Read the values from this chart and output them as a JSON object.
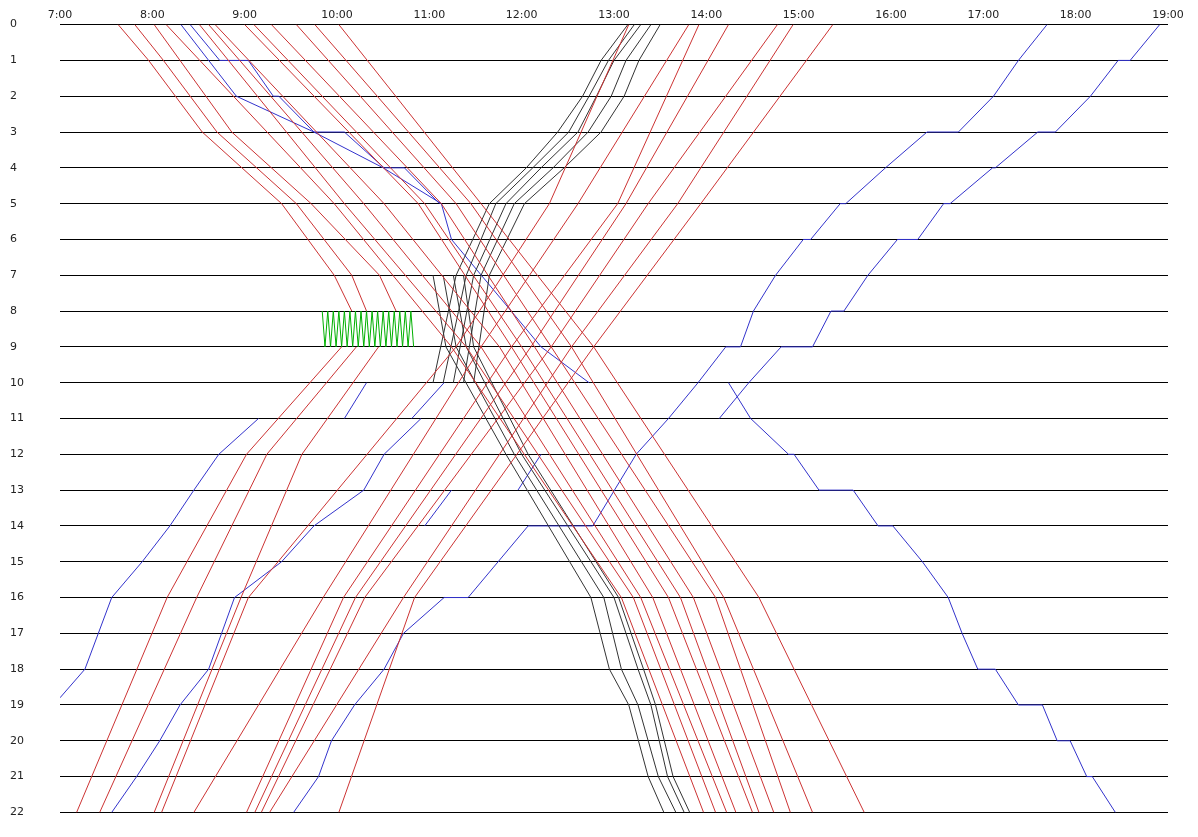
{
  "chart_data": {
    "type": "line",
    "xlim": [
      7,
      19
    ],
    "ylim": [
      22,
      0
    ],
    "xticks": [
      {
        "value": 7,
        "label": "7:00"
      },
      {
        "value": 8,
        "label": "8:00"
      },
      {
        "value": 9,
        "label": "9:00"
      },
      {
        "value": 10,
        "label": "10:00"
      },
      {
        "value": 11,
        "label": "11:00"
      },
      {
        "value": 12,
        "label": "12:00"
      },
      {
        "value": 13,
        "label": "13:00"
      },
      {
        "value": 14,
        "label": "14:00"
      },
      {
        "value": 15,
        "label": "15:00"
      },
      {
        "value": 16,
        "label": "16:00"
      },
      {
        "value": 17,
        "label": "17:00"
      },
      {
        "value": 18,
        "label": "18:00"
      },
      {
        "value": 19,
        "label": "19:00"
      }
    ],
    "yticks": [
      0,
      1,
      2,
      3,
      4,
      5,
      6,
      7,
      8,
      9,
      10,
      11,
      12,
      13,
      14,
      15,
      16,
      17,
      18,
      19,
      20,
      21,
      22
    ],
    "grid": "y",
    "legend": false,
    "marker": "none",
    "line_style": "solid",
    "series": [
      {
        "color": "#cc3333",
        "x": [
          7.63,
          7.96,
          8.54,
          9.4,
          9.97,
          10.16
        ],
        "values": [
          0,
          1,
          3,
          5,
          7,
          8
        ]
      },
      {
        "color": "#cc3333",
        "x": [
          7.81,
          8.12,
          8.7,
          9.56,
          10.16,
          10.32
        ],
        "values": [
          0,
          1,
          3,
          5,
          7,
          8
        ]
      },
      {
        "color": "#cc3333",
        "x": [
          8.02,
          8.3,
          8.86,
          9.72,
          10.46,
          10.64
        ],
        "values": [
          0,
          1,
          3,
          5,
          7,
          8
        ]
      },
      {
        "color": "#cc3333",
        "x": [
          8.15,
          9.97,
          11.24,
          13.08,
          13.97
        ],
        "values": [
          0,
          5,
          9,
          16,
          22
        ]
      },
      {
        "color": "#cc3333",
        "x": [
          8.51,
          10.08,
          11.4,
          13.21,
          14.1
        ],
        "values": [
          0,
          5,
          9,
          16,
          22
        ]
      },
      {
        "color": "#cc3333",
        "x": [
          8.61,
          10.29,
          11.56,
          13.29,
          14.22
        ],
        "values": [
          0,
          5,
          9,
          16,
          22
        ]
      },
      {
        "color": "#cc3333",
        "x": [
          8.68,
          10.51,
          11.76,
          13.42,
          14.32
        ],
        "values": [
          0,
          5,
          9,
          16,
          22
        ]
      },
      {
        "color": "#cc3333",
        "x": [
          9.0,
          10.88,
          11.89,
          13.59,
          14.5
        ],
        "values": [
          0,
          5,
          9,
          16,
          22
        ]
      },
      {
        "color": "#cc3333",
        "x": [
          9.1,
          10.95,
          12.0,
          13.72,
          14.57
        ],
        "values": [
          0,
          5,
          9,
          16,
          22
        ]
      },
      {
        "color": "#cc3333",
        "x": [
          9.29,
          11.13,
          12.14,
          13.86,
          14.73
        ],
        "values": [
          0,
          5,
          9,
          16,
          22
        ]
      },
      {
        "color": "#cc3333",
        "x": [
          9.56,
          11.29,
          12.32,
          14.1,
          14.91
        ],
        "values": [
          0,
          5,
          9,
          16,
          22
        ]
      },
      {
        "color": "#cc3333",
        "x": [
          9.76,
          11.45,
          12.54,
          14.19,
          15.15
        ],
        "values": [
          0,
          5,
          9,
          16,
          22
        ]
      },
      {
        "color": "#cc3333",
        "x": [
          10.02,
          11.56,
          12.78,
          14.57,
          15.71
        ],
        "values": [
          0,
          5,
          9,
          16,
          22
        ]
      },
      {
        "color": "#cc3333",
        "x": [
          7.18,
          8.16,
          9.02,
          10.05
        ],
        "values": [
          22,
          16,
          12,
          9
        ]
      },
      {
        "color": "#cc3333",
        "x": [
          7.43,
          8.48,
          9.24,
          10.21
        ],
        "values": [
          22,
          16,
          12,
          9
        ]
      },
      {
        "color": "#cc3333",
        "x": [
          8.02,
          8.96,
          9.62,
          10.45
        ],
        "values": [
          22,
          16,
          12,
          9
        ]
      },
      {
        "color": "#cc3333",
        "x": [
          8.1,
          9.04,
          11.29,
          12.3,
          13.16
        ],
        "values": [
          22,
          16,
          9,
          5,
          0
        ]
      },
      {
        "color": "#cc3333",
        "x": [
          8.45,
          9.85,
          11.56,
          12.61,
          13.81
        ],
        "values": [
          22,
          16,
          9,
          5,
          0
        ]
      },
      {
        "color": "#cc3333",
        "x": [
          9.02,
          10.07,
          11.89,
          13.04,
          13.92
        ],
        "values": [
          22,
          16,
          9,
          5,
          0
        ]
      },
      {
        "color": "#cc3333",
        "x": [
          9.11,
          10.2,
          12.1,
          13.13,
          14.24
        ],
        "values": [
          22,
          16,
          9,
          5,
          0
        ]
      },
      {
        "color": "#cc3333",
        "x": [
          9.18,
          10.3,
          12.32,
          13.37,
          14.77
        ],
        "values": [
          22,
          16,
          9,
          5,
          0
        ]
      },
      {
        "color": "#cc3333",
        "x": [
          9.27,
          10.72,
          12.54,
          13.69,
          14.94
        ],
        "values": [
          22,
          16,
          9,
          5,
          0
        ]
      },
      {
        "color": "#cc3333",
        "x": [
          10.02,
          10.84,
          12.78,
          13.94,
          15.37
        ],
        "values": [
          22,
          16,
          9,
          5,
          0
        ]
      },
      {
        "color": "#333333",
        "x": [
          11.04,
          11.29,
          11.65,
          12.05,
          12.39,
          12.66,
          12.86,
          13.15
        ],
        "values": [
          10,
          7,
          5,
          4,
          3,
          2,
          1,
          0
        ]
      },
      {
        "color": "#333333",
        "x": [
          11.15,
          11.4,
          11.72,
          12.12,
          12.51,
          12.73,
          12.94,
          13.22
        ],
        "values": [
          10,
          7,
          5,
          4,
          3,
          2,
          1,
          0
        ]
      },
      {
        "color": "#333333",
        "x": [
          11.26,
          11.48,
          11.83,
          12.21,
          12.61,
          12.81,
          13.0,
          13.29
        ],
        "values": [
          10,
          7,
          5,
          4,
          3,
          2,
          1,
          0
        ]
      },
      {
        "color": "#333333",
        "x": [
          11.37,
          11.56,
          11.92,
          12.34,
          12.72,
          12.97,
          13.13,
          13.4
        ],
        "values": [
          10,
          7,
          5,
          4,
          3,
          2,
          1,
          0
        ]
      },
      {
        "color": "#333333",
        "x": [
          11.48,
          11.65,
          12.03,
          12.46,
          12.86,
          13.11,
          13.27,
          13.5
        ],
        "values": [
          10,
          7,
          5,
          4,
          3,
          2,
          1,
          0
        ]
      },
      {
        "color": "#333333",
        "x": [
          11.04,
          11.18,
          11.83,
          12.75,
          12.95,
          13.16,
          13.37,
          13.54
        ],
        "values": [
          7,
          9,
          12,
          16,
          18,
          19,
          21,
          22
        ]
      },
      {
        "color": "#333333",
        "x": [
          11.15,
          11.29,
          11.92,
          12.89,
          13.08,
          13.26,
          13.48,
          13.67
        ],
        "values": [
          7,
          9,
          12,
          16,
          18,
          19,
          21,
          22
        ]
      },
      {
        "color": "#333333",
        "x": [
          11.26,
          11.4,
          12.0,
          13.0,
          13.26,
          13.4,
          13.58,
          13.76
        ],
        "values": [
          7,
          9,
          12,
          16,
          18,
          19,
          21,
          22
        ]
      },
      {
        "color": "#333333",
        "x": [
          11.37,
          11.48,
          12.07,
          13.05,
          13.32,
          13.45,
          13.64,
          13.82
        ],
        "values": [
          7,
          9,
          12,
          16,
          18,
          19,
          21,
          22
        ]
      },
      {
        "color": "#3333cc",
        "x": [
          8.31,
          8.91,
          9.75,
          10.5,
          11.13,
          11.24,
          12.21,
          12.73
        ],
        "values": [
          0,
          2,
          3,
          4,
          5,
          6,
          9,
          10
        ]
      },
      {
        "color": "#3333cc",
        "x": [
          8.41,
          8.73,
          9.04,
          9.31,
          9.37,
          9.75,
          10.08,
          10.51,
          10.73,
          11.11
        ],
        "values": [
          0,
          1,
          1,
          2,
          2,
          3,
          3,
          4,
          4,
          5
        ]
      },
      {
        "color": "#3333cc",
        "x": [
          7.0,
          7.27,
          7.56,
          7.89,
          8.19,
          8.45,
          8.72,
          9.15
        ],
        "values": [
          18.8,
          18,
          16,
          15,
          14,
          13,
          12,
          11
        ]
      },
      {
        "color": "#3333cc",
        "x": [
          7.56,
          7.83,
          8.08,
          8.3,
          8.61,
          8.75,
          8.89,
          9.4,
          9.75,
          10.29,
          10.51,
          10.91
        ],
        "values": [
          22,
          21,
          20,
          19,
          18,
          17,
          16,
          15,
          14,
          13,
          12,
          11
        ]
      },
      {
        "color": "#3333cc",
        "x": [
          9.53,
          9.8,
          9.94,
          10.19,
          10.51,
          10.72,
          11.16,
          11.42,
          12.07,
          12.77,
          13.24,
          13.59,
          13.91,
          14.21,
          14.37,
          14.51,
          14.75,
          15.05,
          15.13,
          15.45,
          15.51,
          15.94,
          16.39,
          16.73,
          17.11,
          17.38,
          17.69
        ],
        "values": [
          22,
          21,
          20,
          19,
          18,
          17,
          16,
          16,
          14,
          14,
          12,
          11,
          10,
          9,
          9,
          8,
          7,
          6,
          6,
          5,
          5,
          4,
          3,
          3,
          2,
          1,
          0
        ]
      },
      {
        "color": "#3333cc",
        "x": [
          14.14,
          14.46,
          14.81,
          15.15,
          15.35,
          15.49,
          15.75,
          16.07,
          16.29,
          16.57,
          16.64,
          17.1,
          17.13,
          17.59,
          17.78,
          18.16,
          18.46,
          18.59,
          18.91
        ],
        "values": [
          11,
          10,
          9,
          9,
          8,
          8,
          7,
          6,
          6,
          5,
          5,
          4,
          4,
          3,
          3,
          2,
          1,
          1,
          0
        ]
      },
      {
        "color": "#3333cc",
        "x": [
          14.24,
          14.48,
          14.89,
          14.95,
          15.22,
          15.59,
          15.86,
          16.02,
          16.34,
          16.62,
          16.77,
          16.94,
          17.13,
          17.38,
          17.64,
          17.8,
          17.94,
          18.12,
          18.18,
          18.43
        ],
        "values": [
          10,
          11,
          12,
          12,
          13,
          13,
          14,
          14,
          15,
          16,
          17,
          18,
          18,
          19,
          19,
          20,
          20,
          21,
          21,
          22
        ]
      },
      {
        "color": "#3333cc",
        "x": [
          10.95,
          11.24
        ],
        "values": [
          14,
          13
        ]
      },
      {
        "color": "#3333cc",
        "x": [
          11.96,
          12.21
        ],
        "values": [
          13,
          12
        ]
      },
      {
        "color": "#3333cc",
        "x": [
          10.08,
          10.32
        ],
        "values": [
          11,
          10
        ]
      },
      {
        "color": "#3333cc",
        "x": [
          10.81,
          11.16
        ],
        "values": [
          11,
          10
        ]
      },
      {
        "color": "#00b000",
        "x": [
          9.84,
          9.87,
          9.9,
          9.93,
          9.96,
          9.99,
          10.02,
          10.05,
          10.08,
          10.11,
          10.14,
          10.17,
          10.2,
          10.23,
          10.26,
          10.29,
          10.32,
          10.35,
          10.38,
          10.41,
          10.44,
          10.47,
          10.5,
          10.53,
          10.56,
          10.59,
          10.62,
          10.65,
          10.68,
          10.71,
          10.74,
          10.77,
          10.8,
          10.83
        ],
        "values": [
          8,
          9,
          8,
          9,
          8,
          9,
          8,
          9,
          8,
          9,
          8,
          9,
          8,
          9,
          8,
          9,
          8,
          9,
          8,
          9,
          8,
          9,
          8,
          9,
          8,
          9,
          8,
          9,
          8,
          9,
          8,
          9,
          8,
          9
        ]
      }
    ]
  }
}
